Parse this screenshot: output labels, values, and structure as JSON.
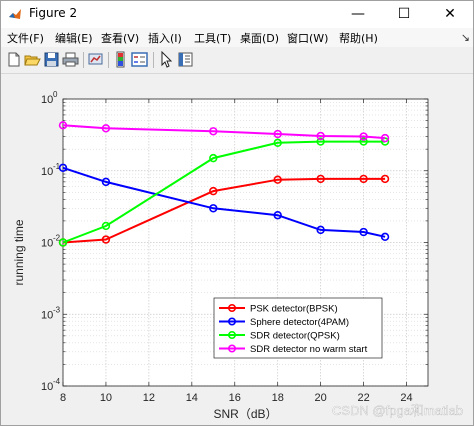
{
  "window": {
    "title": "Figure 2",
    "minimize_glyph": "—",
    "maximize_glyph": "☐",
    "close_glyph": "✕"
  },
  "menu": [
    {
      "label": "文件(F)",
      "name": "menu-file"
    },
    {
      "label": "编辑(E)",
      "name": "menu-edit"
    },
    {
      "label": "查看(V)",
      "name": "menu-view"
    },
    {
      "label": "插入(I)",
      "name": "menu-insert"
    },
    {
      "label": "工具(T)",
      "name": "menu-tools"
    },
    {
      "label": "桌面(D)",
      "name": "menu-desktop"
    },
    {
      "label": "窗口(W)",
      "name": "menu-window"
    },
    {
      "label": "帮助(H)",
      "name": "menu-help"
    }
  ],
  "toolbar": {
    "icons": [
      "new-figure-icon",
      "open-file-icon",
      "save-icon",
      "print-icon",
      "link-plot-icon",
      "colorbar-icon",
      "legend-icon",
      "edit-plot-icon",
      "property-inspector-icon"
    ]
  },
  "watermark": "CSDN @fpga和matlab",
  "chart_data": {
    "type": "line",
    "xlabel": "SNR（dB）",
    "ylabel": "running time",
    "xlim": [
      8,
      25
    ],
    "ylim": [
      0.0001,
      1
    ],
    "y_scale": "log",
    "grid": true,
    "minor_grid": true,
    "legend_position": "lower-right",
    "x_ticks": [
      8,
      10,
      12,
      14,
      16,
      18,
      20,
      22,
      24
    ],
    "y_ticks": [
      {
        "value": 1,
        "label": "10",
        "exp": "0"
      },
      {
        "value": 0.1,
        "label": "10",
        "exp": "-1"
      },
      {
        "value": 0.01,
        "label": "10",
        "exp": "-2"
      },
      {
        "value": 0.001,
        "label": "10",
        "exp": "-3"
      },
      {
        "value": 0.0001,
        "label": "10",
        "exp": "-4"
      }
    ],
    "series": [
      {
        "name": "PSK detector(BPSK)",
        "color": "#ff0000",
        "x": [
          8,
          10,
          15,
          18,
          20,
          22,
          23
        ],
        "y": [
          0.01,
          0.011,
          0.052,
          0.075,
          0.077,
          0.077,
          0.077
        ]
      },
      {
        "name": "Sphere detector(4PAM)",
        "color": "#0000ff",
        "x": [
          8,
          10,
          15,
          18,
          20,
          22,
          23
        ],
        "y": [
          0.11,
          0.07,
          0.03,
          0.024,
          0.015,
          0.014,
          0.012
        ]
      },
      {
        "name": "SDR detector(QPSK)",
        "color": "#00ff00",
        "x": [
          8,
          10,
          15,
          18,
          20,
          22,
          23
        ],
        "y": [
          0.01,
          0.017,
          0.15,
          0.245,
          0.255,
          0.255,
          0.255
        ]
      },
      {
        "name": "SDR detector no warm start",
        "color": "#ff00ff",
        "x": [
          8,
          10,
          15,
          18,
          20,
          22,
          23
        ],
        "y": [
          0.43,
          0.39,
          0.355,
          0.325,
          0.305,
          0.3,
          0.285
        ]
      }
    ]
  }
}
